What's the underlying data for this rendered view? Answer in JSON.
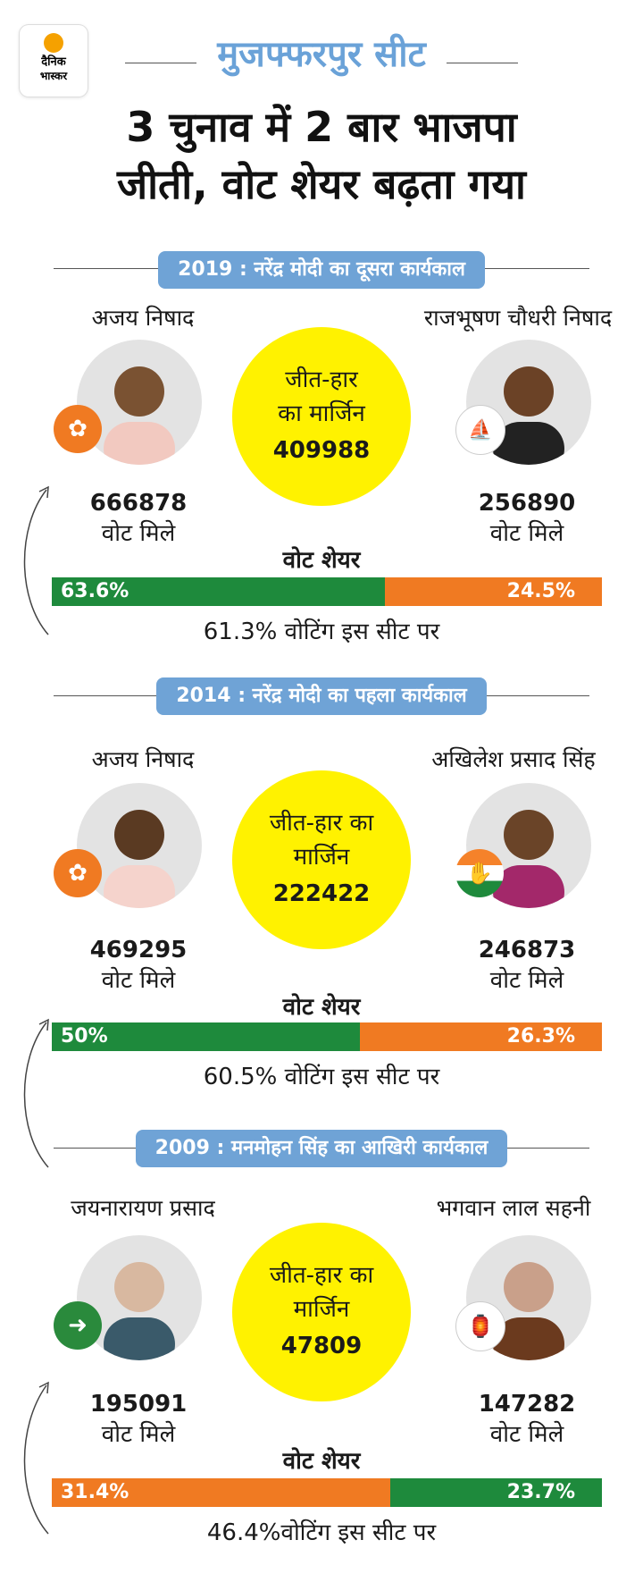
{
  "brand": {
    "line1": "दैनिक",
    "line2": "भास्कर"
  },
  "seat_title": "मुजफ्फरपुर सीट",
  "headline": [
    "3 चुनाव में 2 बार भाजपा",
    "जीती, वोट शेयर बढ़ता गया"
  ],
  "colors": {
    "bjp_green": "#1e8a3c",
    "orange": "#f07a22",
    "margin_yellow": "#fff200",
    "pill_blue": "#6fa3d6"
  },
  "elections": [
    {
      "title": "2019 : नरेंद्र मोदी का दूसरा कार्यकाल",
      "winner": {
        "name": "अजय निषाद",
        "votes": "666878",
        "votes_label": "वोट मिले",
        "party_icon": "lotus-icon"
      },
      "runner": {
        "name": "राजभूषण चौधरी निषाद",
        "votes": "256890",
        "votes_label": "वोट मिले",
        "party_icon": "boat-icon"
      },
      "margin_label_1": "जीत-हार",
      "margin_label_2": "का मार्जिन",
      "margin": "409988",
      "share_title": "वोट शेयर",
      "left_share": "63.6%",
      "right_share": "24.5%",
      "left_fraction": 0.606,
      "turnout": "61.3% वोटिंग इस सीट पर"
    },
    {
      "title": "2014 : नरेंद्र मोदी का पहला कार्यकाल",
      "winner": {
        "name": "अजय निषाद",
        "votes": "469295",
        "votes_label": "वोट मिले",
        "party_icon": "lotus-icon"
      },
      "runner": {
        "name": "अखिलेश प्रसाद सिंह",
        "votes": "246873",
        "votes_label": "वोट मिले",
        "party_icon": "hand-icon"
      },
      "margin_label_1": "जीत-हार का",
      "margin_label_2": "मार्जिन",
      "margin": "222422",
      "share_title": "वोट शेयर",
      "left_share": "50%",
      "right_share": "26.3%",
      "left_fraction": 0.56,
      "turnout": "60.5% वोटिंग इस सीट पर"
    },
    {
      "title": "2009 : मनमोहन सिंह का आखिरी कार्यकाल",
      "winner": {
        "name": "जयनारायण प्रसाद",
        "votes": "195091",
        "votes_label": "वोट मिले",
        "party_icon": "arrow-icon"
      },
      "runner": {
        "name": "भगवान लाल सहनी",
        "votes": "147282",
        "votes_label": "वोट मिले",
        "party_icon": "lantern-icon"
      },
      "margin_label_1": "जीत-हार का",
      "margin_label_2": "मार्जिन",
      "margin": "47809",
      "share_title": "वोट शेयर",
      "left_share": "31.4%",
      "right_share": "23.7%",
      "left_fraction": 0.615,
      "turnout": "46.4%वोटिंग इस सीट पर"
    }
  ]
}
